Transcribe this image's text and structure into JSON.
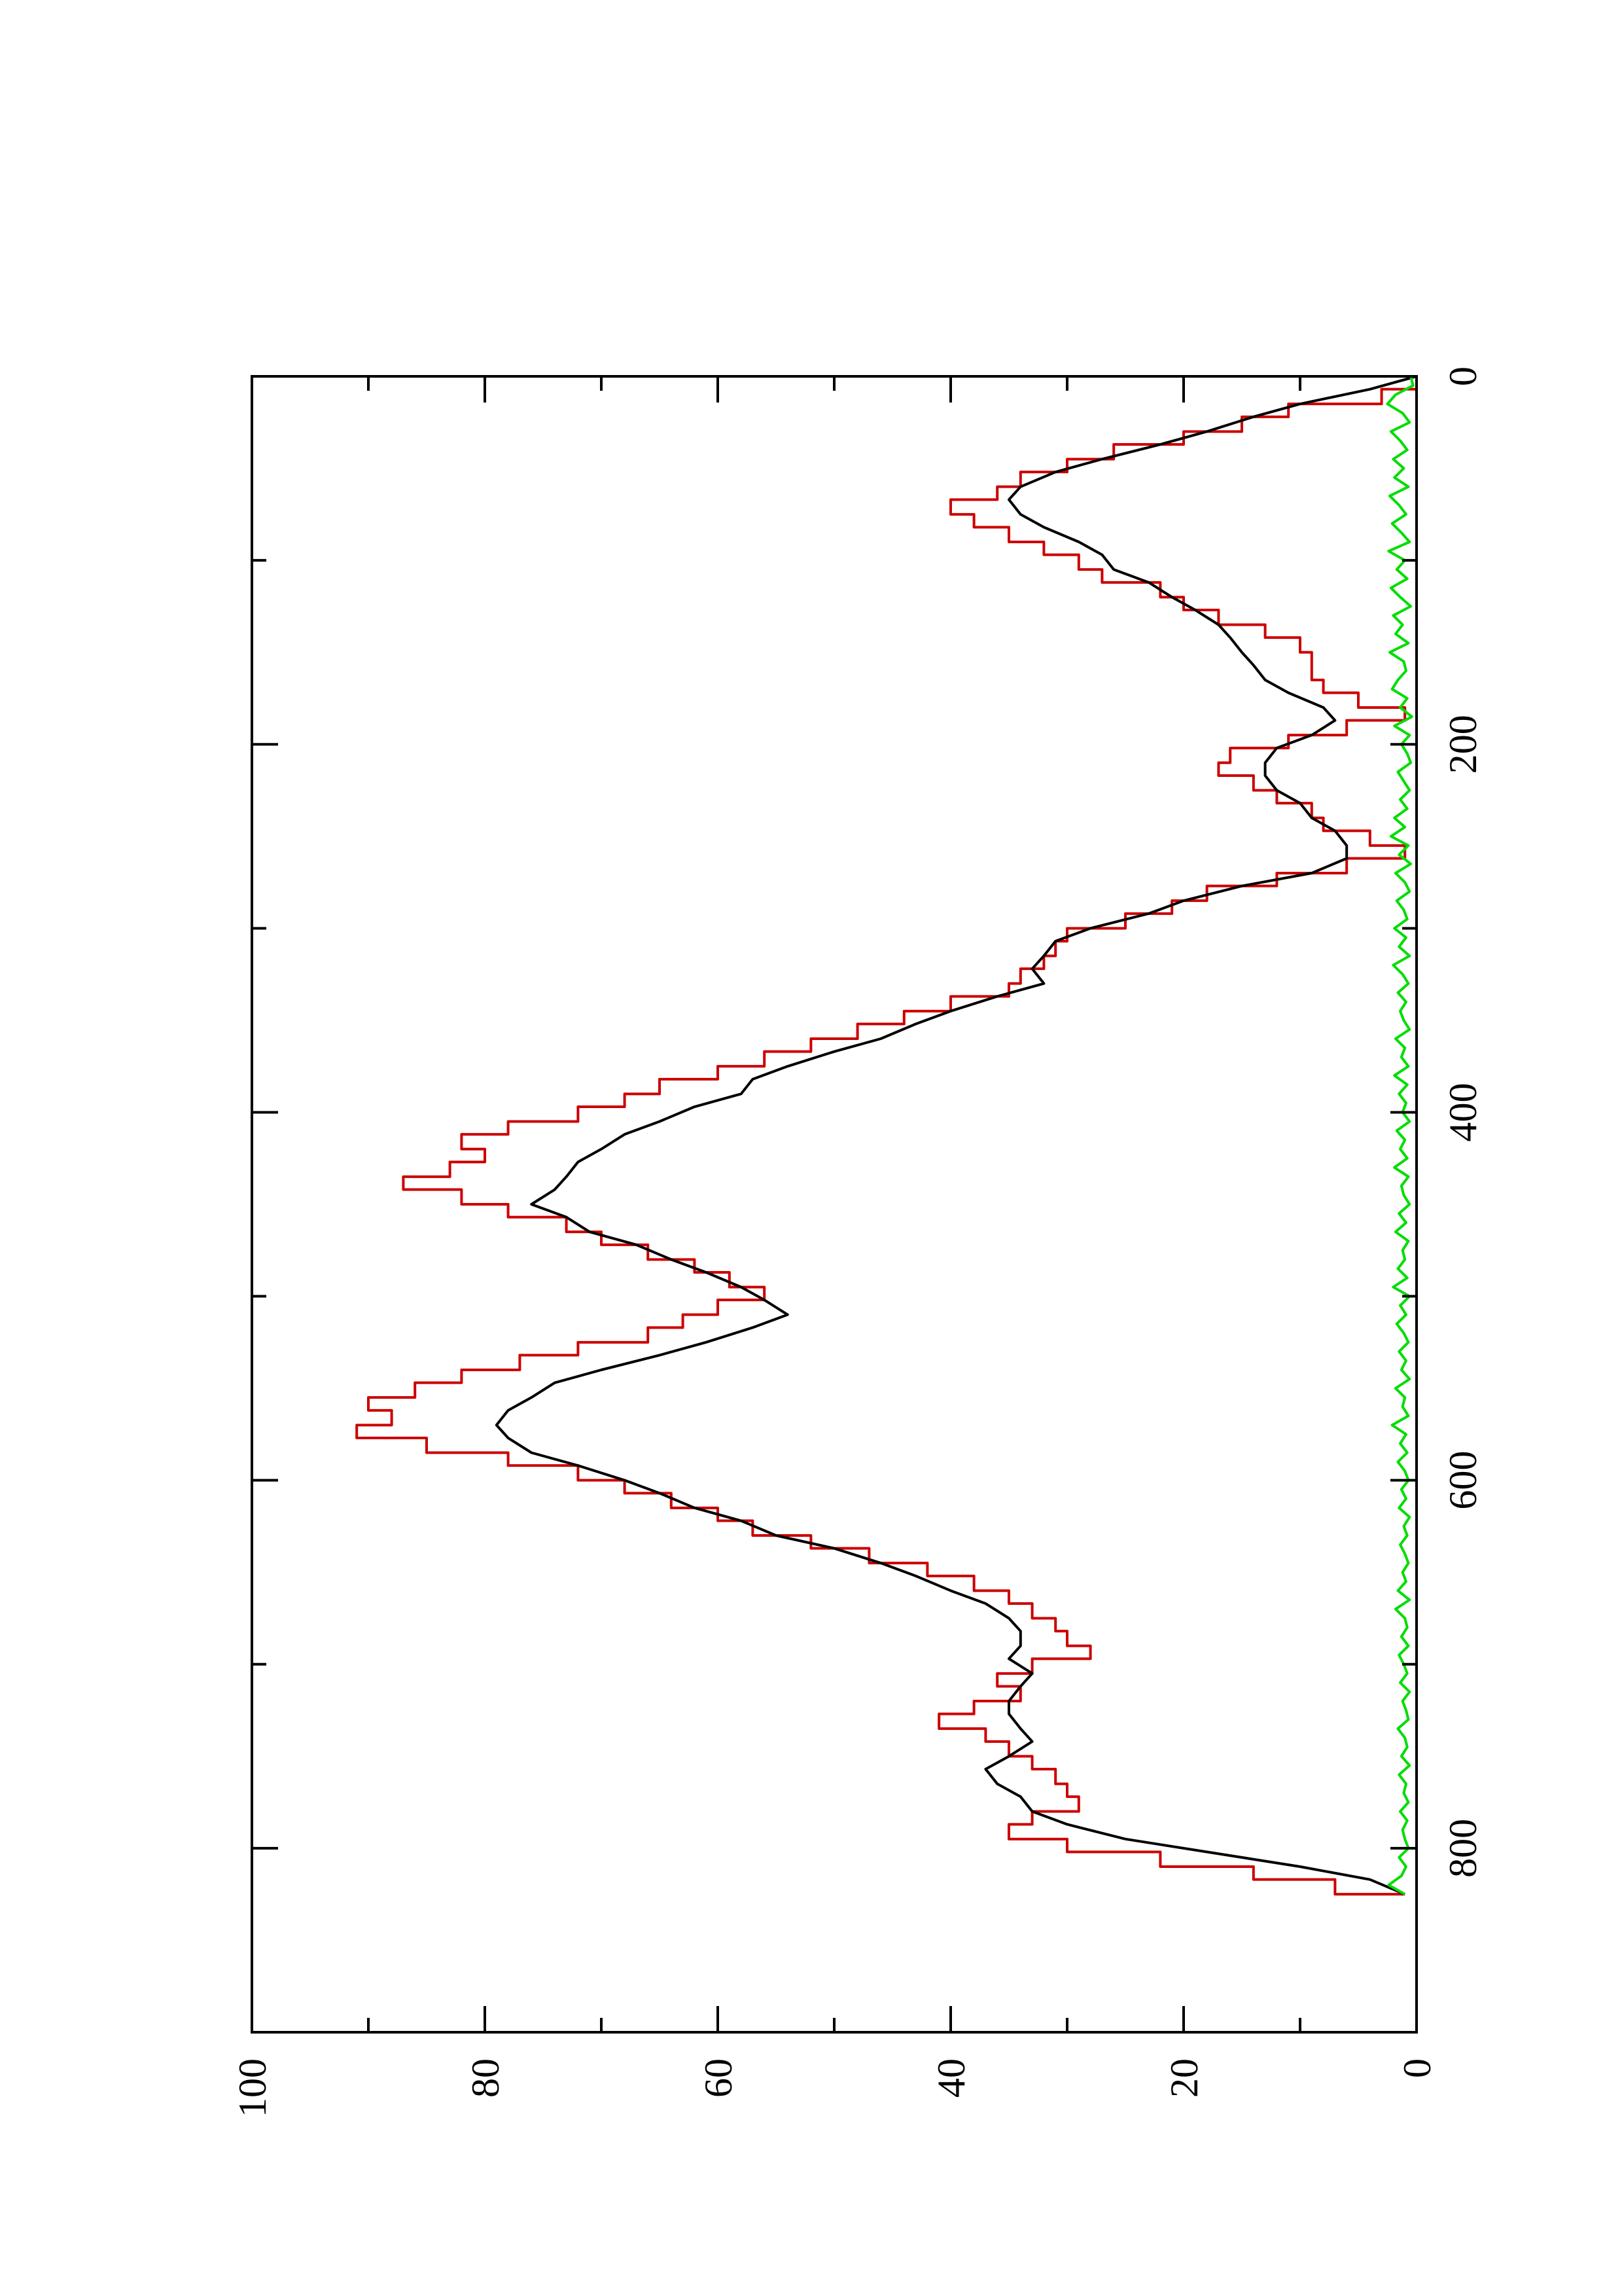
{
  "chart_data": {
    "type": "line",
    "title": "",
    "xlabel": "",
    "ylabel": "",
    "orientation": "rotated-90-counterclockwise",
    "grid": false,
    "legend": "none",
    "xlim": [
      0,
      900
    ],
    "ylim": [
      0,
      100
    ],
    "x_ticks": [
      0,
      200,
      400,
      600,
      800
    ],
    "x_minor_ticks": [
      100,
      300,
      500,
      700
    ],
    "y_ticks": [
      0,
      20,
      40,
      60,
      80,
      100
    ],
    "y_minor_ticks": [
      10,
      30,
      50,
      70,
      90
    ],
    "series": [
      {
        "color": "#cc0000",
        "style": "step",
        "x": [
          0,
          7,
          15,
          22,
          30,
          37,
          45,
          52,
          60,
          67,
          75,
          82,
          90,
          97,
          105,
          112,
          120,
          127,
          135,
          142,
          150,
          157,
          165,
          172,
          180,
          187,
          195,
          202,
          210,
          217,
          225,
          232,
          240,
          247,
          255,
          262,
          270,
          277,
          285,
          292,
          300,
          307,
          315,
          322,
          330,
          337,
          345,
          352,
          360,
          367,
          375,
          382,
          390,
          397,
          405,
          412,
          420,
          427,
          435,
          442,
          450,
          457,
          465,
          472,
          480,
          487,
          495,
          502,
          510,
          517,
          525,
          532,
          540,
          547,
          555,
          562,
          570,
          577,
          585,
          592,
          600,
          607,
          615,
          622,
          630,
          637,
          645,
          652,
          660,
          667,
          675,
          682,
          690,
          697,
          705,
          712,
          720,
          727,
          735,
          742,
          750,
          757,
          765,
          772,
          780,
          787,
          795,
          802,
          810,
          817,
          825
        ],
        "y": [
          0,
          3,
          11,
          15,
          20,
          26,
          30,
          34,
          36,
          40,
          38,
          35,
          32,
          29,
          27,
          22,
          20,
          17,
          13,
          10,
          9,
          9,
          8,
          5,
          1,
          6,
          11,
          16,
          17,
          14,
          12,
          9,
          8,
          4,
          1,
          6,
          12,
          18,
          21,
          25,
          30,
          31,
          32,
          34,
          35,
          40,
          44,
          48,
          52,
          56,
          60,
          65,
          68,
          72,
          78,
          82,
          80,
          83,
          87,
          82,
          78,
          73,
          70,
          66,
          62,
          59,
          56,
          60,
          63,
          66,
          72,
          77,
          82,
          86,
          90,
          88,
          91,
          85,
          78,
          72,
          68,
          64,
          60,
          57,
          52,
          47,
          42,
          38,
          35,
          33,
          31,
          30,
          28,
          33,
          36,
          34,
          38,
          41,
          37,
          35,
          33,
          31,
          30,
          29,
          33,
          35,
          30,
          22,
          14,
          7,
          1
        ]
      },
      {
        "color": "#000000",
        "style": "line",
        "x": [
          0,
          7,
          15,
          22,
          30,
          37,
          45,
          52,
          60,
          67,
          75,
          82,
          90,
          97,
          105,
          112,
          120,
          127,
          135,
          142,
          150,
          157,
          165,
          172,
          180,
          187,
          195,
          202,
          210,
          217,
          225,
          232,
          240,
          247,
          255,
          262,
          270,
          277,
          285,
          292,
          300,
          307,
          315,
          322,
          330,
          337,
          345,
          352,
          360,
          367,
          375,
          382,
          390,
          397,
          405,
          412,
          420,
          427,
          435,
          442,
          450,
          457,
          465,
          472,
          480,
          487,
          495,
          502,
          510,
          517,
          525,
          532,
          540,
          547,
          555,
          562,
          570,
          577,
          585,
          592,
          600,
          607,
          615,
          622,
          630,
          637,
          645,
          652,
          660,
          667,
          675,
          682,
          690,
          697,
          705,
          712,
          720,
          727,
          735,
          742,
          750,
          757,
          765,
          772,
          780,
          787,
          795,
          802,
          810,
          817,
          825
        ],
        "y": [
          0,
          4,
          10,
          14,
          18,
          22,
          27,
          31,
          34,
          35,
          34,
          32,
          29,
          27,
          26,
          23,
          21,
          19,
          17,
          16,
          15,
          14,
          13,
          11,
          8,
          7,
          9,
          12,
          13,
          13,
          12,
          10,
          9,
          7,
          6,
          6,
          9,
          15,
          20,
          23,
          28,
          31,
          32,
          33,
          32,
          36,
          40,
          43,
          46,
          50,
          54,
          57,
          58,
          62,
          65,
          68,
          70,
          72,
          73,
          74,
          76,
          73,
          71,
          67,
          64,
          61,
          58,
          56,
          54,
          57,
          61,
          65,
          70,
          74,
          76,
          78,
          79,
          78,
          76,
          72,
          68,
          65,
          62,
          58,
          55,
          50,
          46,
          43,
          40,
          37,
          35,
          34,
          34,
          35,
          33,
          34,
          35,
          35,
          34,
          33,
          35,
          37,
          36,
          34,
          33,
          30,
          25,
          18,
          10,
          4,
          1
        ]
      },
      {
        "color": "#00dd00",
        "style": "line",
        "x": [
          0,
          5,
          10,
          15,
          20,
          25,
          30,
          35,
          40,
          45,
          50,
          55,
          60,
          65,
          70,
          75,
          80,
          85,
          90,
          95,
          100,
          105,
          110,
          115,
          120,
          125,
          130,
          135,
          140,
          145,
          150,
          155,
          160,
          165,
          170,
          175,
          180,
          185,
          190,
          195,
          200,
          205,
          210,
          215,
          220,
          225,
          230,
          235,
          240,
          245,
          250,
          255,
          260,
          265,
          270,
          275,
          280,
          285,
          290,
          295,
          300,
          305,
          310,
          315,
          320,
          325,
          330,
          335,
          340,
          345,
          350,
          355,
          360,
          365,
          370,
          375,
          380,
          385,
          390,
          395,
          400,
          405,
          410,
          415,
          420,
          425,
          430,
          435,
          440,
          445,
          450,
          455,
          460,
          465,
          470,
          475,
          480,
          485,
          490,
          495,
          500,
          505,
          510,
          515,
          520,
          525,
          530,
          535,
          540,
          545,
          550,
          555,
          560,
          565,
          570,
          575,
          580,
          585,
          590,
          595,
          600,
          605,
          610,
          615,
          620,
          625,
          630,
          635,
          640,
          645,
          650,
          655,
          660,
          665,
          670,
          675,
          680,
          685,
          690,
          695,
          700,
          705,
          710,
          715,
          720,
          725,
          730,
          735,
          740,
          745,
          750,
          755,
          760,
          765,
          770,
          775,
          780,
          785,
          790,
          795,
          800,
          805,
          810,
          815,
          820,
          825
        ],
        "y": [
          0.5,
          0.3,
          1.8,
          2.5,
          1.2,
          0.6,
          2.2,
          1.4,
          0.8,
          2.0,
          1.1,
          1.9,
          0.7,
          2.3,
          1.5,
          0.9,
          2.1,
          1.3,
          0.6,
          2.4,
          1.0,
          1.7,
          0.8,
          2.2,
          1.4,
          0.5,
          2.0,
          1.2,
          1.8,
          0.7,
          2.3,
          1.1,
          0.9,
          1.6,
          2.1,
          0.8,
          1.4,
          0.4,
          1.9,
          0.6,
          1.3,
          0.8,
          0.5,
          1.6,
          1.1,
          0.6,
          1.4,
          0.8,
          1.9,
          1.0,
          2.2,
          0.7,
          1.5,
          0.5,
          1.8,
          1.0,
          0.6,
          1.7,
          1.1,
          0.8,
          1.9,
          0.9,
          1.5,
          0.6,
          2.0,
          1.2,
          0.7,
          1.6,
          0.9,
          1.4,
          1.1,
          0.6,
          1.8,
          1.0,
          1.3,
          0.7,
          1.9,
          0.8,
          1.5,
          0.9,
          1.2,
          0.6,
          1.7,
          1.0,
          1.4,
          0.8,
          1.9,
          0.7,
          1.3,
          1.1,
          0.6,
          1.5,
          0.9,
          1.8,
          0.7,
          1.2,
          1.0,
          1.6,
          0.8,
          2.0,
          0.6,
          1.4,
          0.9,
          1.7,
          1.1,
          0.7,
          1.5,
          0.9,
          1.3,
          0.6,
          1.8,
          1.0,
          1.2,
          0.7,
          2.1,
          0.9,
          1.4,
          0.8,
          1.6,
          1.0,
          0.7,
          1.3,
          0.9,
          1.5,
          0.6,
          1.1,
          0.8,
          1.4,
          1.0,
          0.7,
          1.2,
          0.9,
          1.6,
          0.6,
          1.8,
          1.0,
          0.8,
          1.3,
          0.7,
          1.5,
          1.1,
          0.8,
          1.4,
          0.6,
          1.2,
          0.9,
          0.7,
          1.6,
          1.0,
          0.8,
          1.3,
          0.6,
          1.5,
          0.9,
          1.1,
          0.7,
          1.4,
          0.8,
          1.2,
          1.0,
          0.7,
          1.5,
          0.9,
          1.3,
          2.4,
          1.0
        ]
      }
    ]
  }
}
